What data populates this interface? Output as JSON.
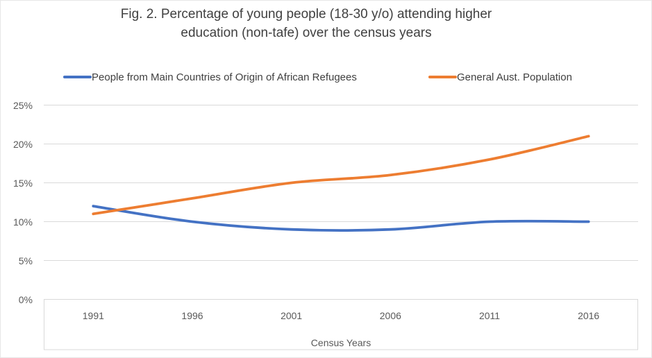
{
  "figure": {
    "title_lines": [
      "Fig. 2. Percentage of young people (18-30 y/o) attending higher",
      "education (non-tafe) over the census years"
    ]
  },
  "chart_data": {
    "type": "line",
    "title": "Fig. 2. Percentage of young people (18-30 y/o) attending higher education (non-tafe) over the census years",
    "categories": [
      "1991",
      "1996",
      "2001",
      "2006",
      "2011",
      "2016"
    ],
    "series": [
      {
        "name": "People from Main Countries of Origin of African Refugees",
        "color": "#4472C4",
        "values": [
          12,
          10,
          9,
          9,
          10,
          10
        ]
      },
      {
        "name": "General Aust. Population",
        "color": "#ED7D31",
        "values": [
          11,
          13,
          15,
          16,
          18,
          21
        ]
      }
    ],
    "xlabel": "Census Years",
    "ylabel": "",
    "ylim": [
      0,
      25
    ],
    "ytick_step": 5,
    "ytick_labels": [
      "0%",
      "5%",
      "10%",
      "15%",
      "20%",
      "25%"
    ],
    "grid": true,
    "legend_position": "top",
    "line_style": "smooth"
  },
  "colors": {
    "title_text": "#404040",
    "axis_text": "#595959",
    "gridline": "#D9D9D9",
    "axis_box_border": "#D9D9D9",
    "canvas_border": "#E7E7E7",
    "background": "#FFFFFF"
  }
}
